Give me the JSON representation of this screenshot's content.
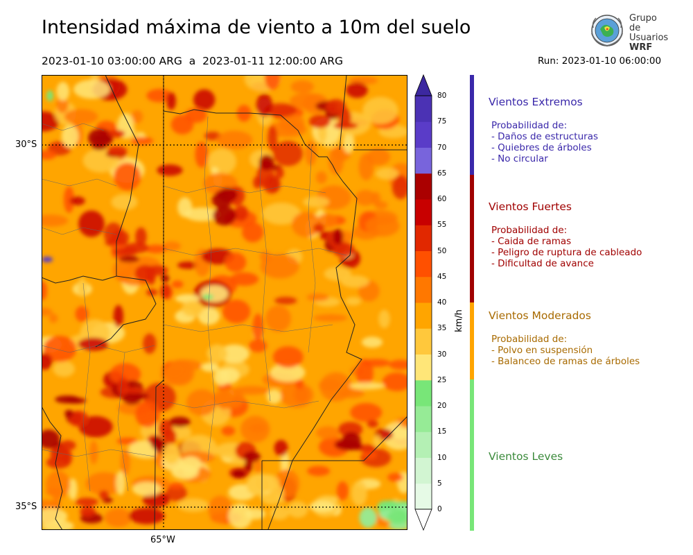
{
  "header": {
    "title": "Intensidad máxima de viento a 10m del suelo",
    "period": "2023-01-10 03:00:00 ARG  a  2023-01-11 12:00:00 ARG",
    "run": "Run: 2023-01-10 06:00:00"
  },
  "logo": {
    "line1": "Grupo de",
    "line2": "Usuarios",
    "line3": "WRF"
  },
  "map": {
    "lat_labels": [
      "30°S",
      "35°S"
    ],
    "lon_labels": [
      "65°W"
    ]
  },
  "colorbar": {
    "units": "km/h",
    "ticks": [
      "80",
      "75",
      "70",
      "65",
      "60",
      "55",
      "50",
      "45",
      "40",
      "35",
      "30",
      "25",
      "20",
      "15",
      "10",
      "5",
      "0"
    ],
    "colors": [
      "#e6fae6",
      "#d2f5d2",
      "#b4f0b4",
      "#96eb96",
      "#78e678",
      "#ffe678",
      "#ffc83c",
      "#ffa500",
      "#ff7800",
      "#ff5000",
      "#e12800",
      "#c80000",
      "#aa0000",
      "#7864dc",
      "#5a3cc8",
      "#4b32b4",
      "#3c28a0"
    ]
  },
  "categories": [
    {
      "title": "Vientos Extremos",
      "color": "#3a28aa",
      "lines": [
        "Probabilidad de:",
        "- Daños de estructuras",
        "- Quiebres de árboles",
        "- No circular"
      ]
    },
    {
      "title": "Vientos Fuertes",
      "color": "#a00000",
      "lines": [
        "Probabilidad de:",
        "- Caida de ramas",
        "- Peligro de ruptura de cableado",
        "- Dificultad de avance"
      ]
    },
    {
      "title": "Vientos Moderados",
      "color": "#a86a00",
      "lines": [
        "Probabilidad de:",
        "- Polvo en suspensión",
        "- Balanceo de ramas de árboles"
      ]
    },
    {
      "title": "Vientos Leves",
      "color": "#3a8a3a",
      "lines": []
    }
  ]
}
